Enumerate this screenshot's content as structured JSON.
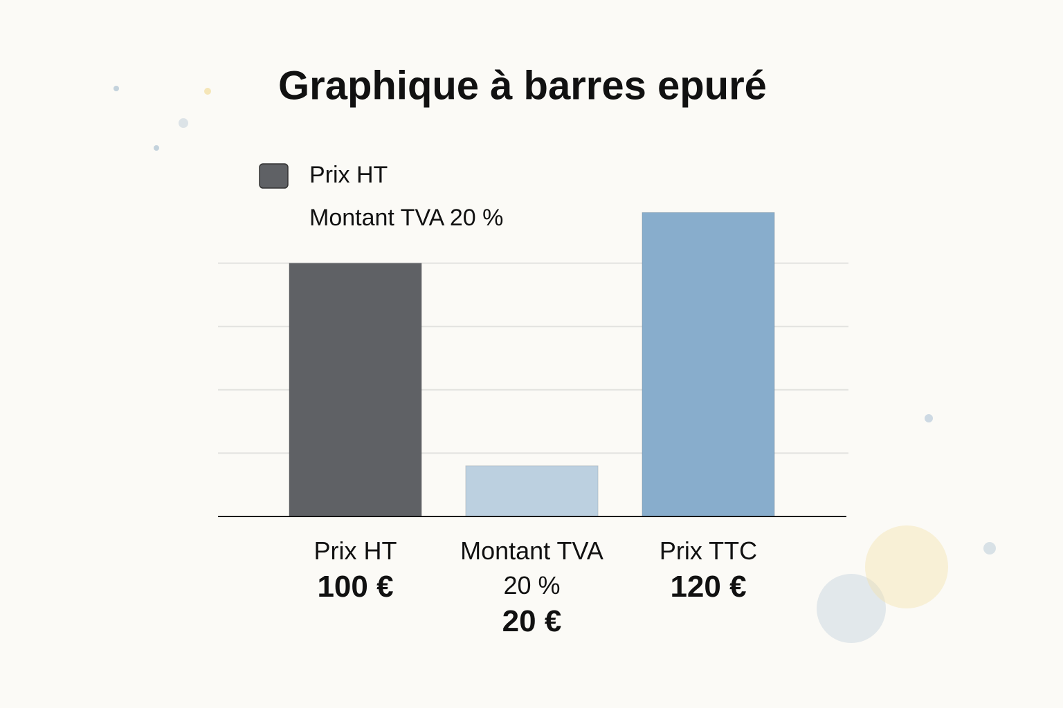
{
  "chart_data": {
    "type": "bar",
    "title": "Graphique à barres epuré",
    "categories": [
      "Prix HT",
      "Montant TVA 20 %",
      "Prix TTC"
    ],
    "values": [
      100,
      20,
      120
    ],
    "value_labels": [
      "100 €",
      "20 €",
      "120 €"
    ],
    "colors": [
      "#5f6165",
      "#bcd0e0",
      "#88adcc"
    ],
    "legend": [
      {
        "name": "Prix HT",
        "color": "#5f6165"
      },
      {
        "name": "Montant TVA 20 %"
      }
    ],
    "ylim": [
      0,
      125
    ],
    "yticks": [
      25,
      50,
      75,
      100
    ],
    "grid": true
  }
}
